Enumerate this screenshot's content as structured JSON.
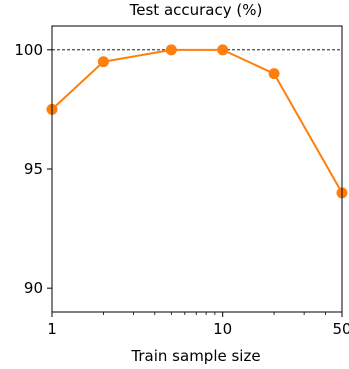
{
  "chart_data": {
    "type": "line",
    "title": "Test accuracy (%)",
    "xlabel": "Train sample size",
    "ylabel": "",
    "xscale": "log",
    "xlim": [
      1,
      50
    ],
    "ylim": [
      89,
      101
    ],
    "x_ticks": [
      {
        "value": 1,
        "label": "1"
      },
      {
        "value": 10,
        "label": "10"
      },
      {
        "value": 50,
        "label": "50"
      }
    ],
    "y_ticks": [
      {
        "value": 90,
        "label": "90"
      },
      {
        "value": 95,
        "label": "95"
      },
      {
        "value": 100,
        "label": "100"
      }
    ],
    "reference_line": {
      "y": 100,
      "style": "dashed",
      "color": "#000000"
    },
    "grid": false,
    "series": [
      {
        "color": "#ff7f0e",
        "marker": "circle",
        "x": [
          1,
          2,
          5,
          10,
          20,
          50
        ],
        "y": [
          97.5,
          99.5,
          100,
          100,
          99,
          94
        ]
      }
    ]
  }
}
